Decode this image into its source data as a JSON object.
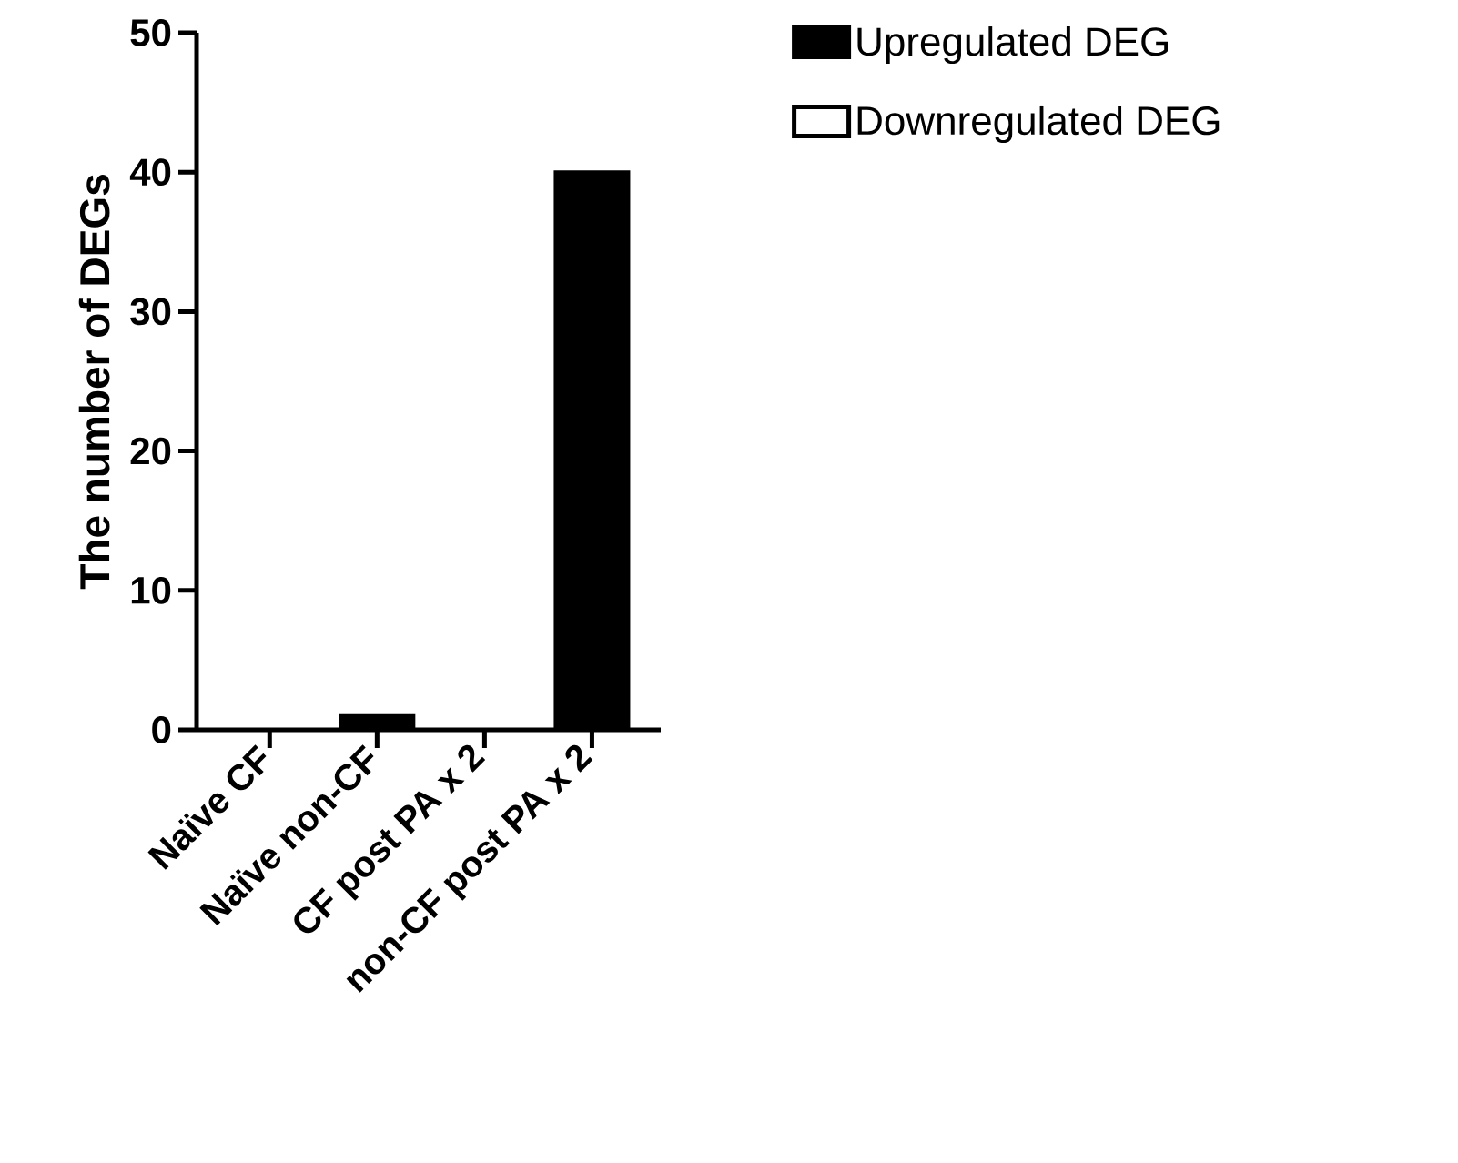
{
  "chart_data": {
    "type": "bar",
    "stacked": true,
    "ylabel": "The number of  DEGs",
    "categories": [
      "Naïve CF",
      "Naïve non-CF",
      "CF post PA x 2",
      "non-CF post PA x 2"
    ],
    "series": [
      {
        "name": "Upregulated DEG",
        "color": "#000000",
        "values": [
          0,
          1,
          0,
          40
        ]
      },
      {
        "name": "Downregulated DEG",
        "color": "#ffffff",
        "values": [
          0,
          0,
          0,
          0
        ]
      }
    ],
    "ylim": [
      0,
      50
    ],
    "yticks": [
      0,
      10,
      20,
      30,
      40,
      50
    ],
    "legend": "top right"
  }
}
